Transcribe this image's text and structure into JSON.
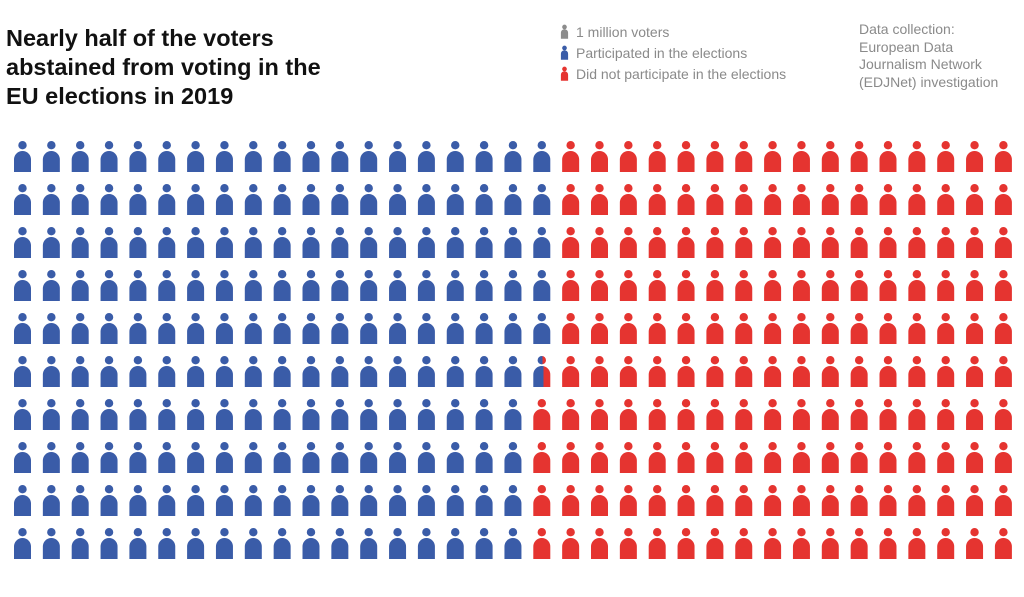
{
  "title": "Nearly half of the voters abstained from voting in the EU elections in 2019",
  "legend": [
    {
      "label": "1 million voters",
      "color": "#8c8c8c",
      "icon": "person-icon"
    },
    {
      "label": "Participated in the elections",
      "color": "#3a5ca8",
      "icon": "person-icon"
    },
    {
      "label": "Did not participate in the elections",
      "color": "#e53430",
      "icon": "person-icon"
    }
  ],
  "source": "Data collection:\nEuropean Data\nJournalism Network\n(EDJNet) investigation",
  "chart_data": {
    "type": "waffle",
    "unit": "1 million voters",
    "columns": 35,
    "rows": 10,
    "fill_order": "column-major, top to bottom",
    "categories": [
      "Participated in the elections",
      "Did not participate in the elections"
    ],
    "values": [
      185.6,
      164.4
    ],
    "colors": [
      "#3a5ca8",
      "#e53430"
    ]
  }
}
